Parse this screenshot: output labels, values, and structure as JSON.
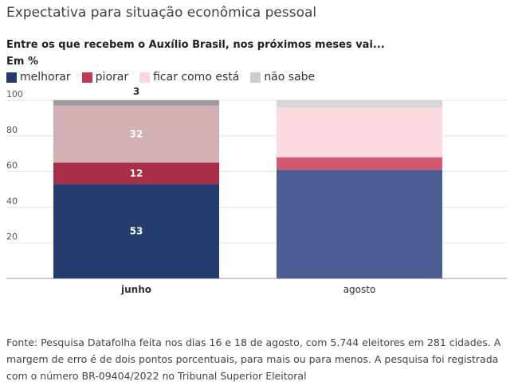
{
  "title": "Expectativa para situação econômica pessoal",
  "subtitle": "Entre os que recebem o Auxílio Brasil, nos próximos meses vai...",
  "unit_label": "Em %",
  "legend": [
    {
      "label": "melhorar",
      "color": "#253d6e"
    },
    {
      "label": "piorar",
      "color": "#c23a55"
    },
    {
      "label": "ficar como está",
      "color": "#fbd6dd"
    },
    {
      "label": "não sabe",
      "color": "#cccccc"
    }
  ],
  "source": "Fonte: Pesquisa Datafolha feita nos dias 16 e 18 de agosto, com 5.744 eleitores em 281 cidades. A margem de erro é de dois pontos porcentuais, para mais ou para menos. A pesquisa foi registrada com o número BR-09404/2022 no Tribunal Superior Eleitoral",
  "chart_data": {
    "type": "bar",
    "stacked": true,
    "categories": [
      "junho",
      "agosto"
    ],
    "ylim": [
      0,
      100
    ],
    "yticks": [
      20,
      40,
      60,
      80,
      100
    ],
    "grid": true,
    "legend_position": "top-left",
    "series": [
      {
        "name": "melhorar",
        "values": [
          53,
          61
        ],
        "labels": [
          "53",
          ""
        ],
        "colors": [
          "#253d6e",
          "#4c5e93"
        ]
      },
      {
        "name": "piorar",
        "values": [
          12,
          7
        ],
        "labels": [
          "12",
          ""
        ],
        "colors": [
          "#a82e48",
          "#d35a6e"
        ]
      },
      {
        "name": "ficar como está",
        "values": [
          32,
          28
        ],
        "labels": [
          "32",
          ""
        ],
        "colors": [
          "#d1b1b4",
          "#fcdbe0"
        ]
      },
      {
        "name": "não sabe",
        "values": [
          3,
          4
        ],
        "labels": [
          "3",
          ""
        ],
        "colors": [
          "#9a9a9a",
          "#d7d7d7"
        ]
      }
    ]
  }
}
